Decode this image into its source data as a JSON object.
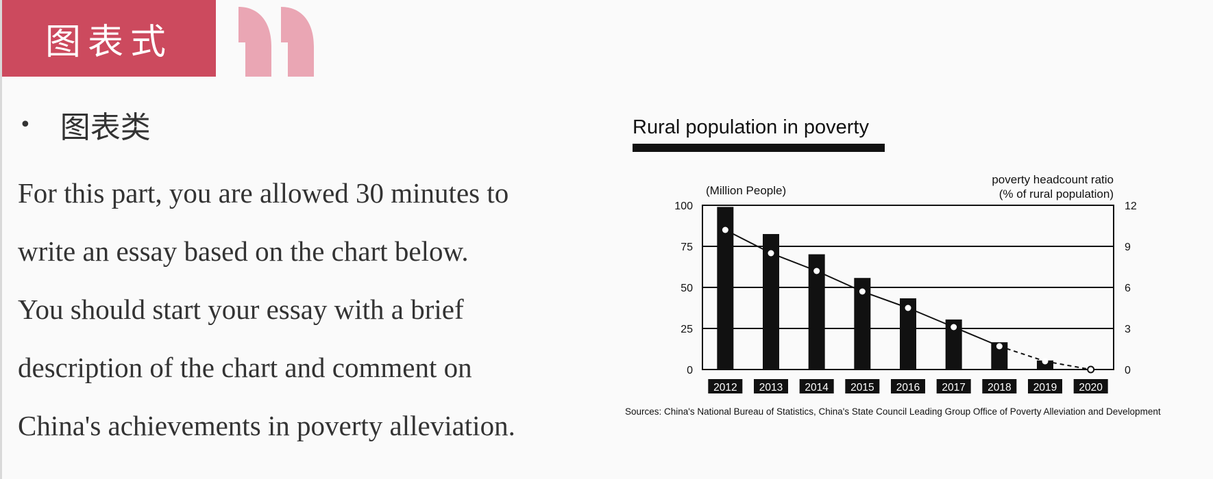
{
  "header": {
    "title": "图表式",
    "accent_color": "#cc4a5e",
    "quote_color": "#eaa6b4"
  },
  "section": {
    "bullet_label": "图表类",
    "prompt_lines": [
      "For this part, you are allowed 30 minutes to",
      "write an essay based on the chart below.",
      "You should start your essay with a brief",
      "description of the chart and comment on",
      "China's achievements in poverty alleviation."
    ]
  },
  "chart_data": {
    "type": "bar",
    "title": "Rural population in poverty",
    "categories": [
      "2012",
      "2013",
      "2014",
      "2015",
      "2016",
      "2017",
      "2018",
      "2019",
      "2020"
    ],
    "series": [
      {
        "name": "(Million People)",
        "type": "bar",
        "axis": "left",
        "values": [
          98.99,
          82.49,
          70.17,
          55.75,
          43.35,
          30.46,
          16.6,
          5.51,
          0
        ]
      },
      {
        "name": "poverty headcount ratio (% of rural population)",
        "type": "line",
        "axis": "right",
        "values": [
          10.2,
          8.5,
          7.2,
          5.7,
          4.5,
          3.1,
          1.7,
          0.6,
          0
        ],
        "dashed_from_index": 6
      }
    ],
    "left_axis": {
      "label": "(Million People)",
      "ylim": [
        0,
        100
      ],
      "ticks": [
        0,
        25,
        50,
        75,
        100
      ]
    },
    "right_axis": {
      "label_line1": "poverty headcount ratio",
      "label_line2": "(% of rural population)",
      "ylim": [
        0,
        12
      ],
      "ticks": [
        0,
        3,
        6,
        9,
        12
      ]
    },
    "grid": true,
    "source": "Sources: China's National Bureau of Statistics, China's State Council Leading Group Office of Poverty Alleviation and Development"
  }
}
